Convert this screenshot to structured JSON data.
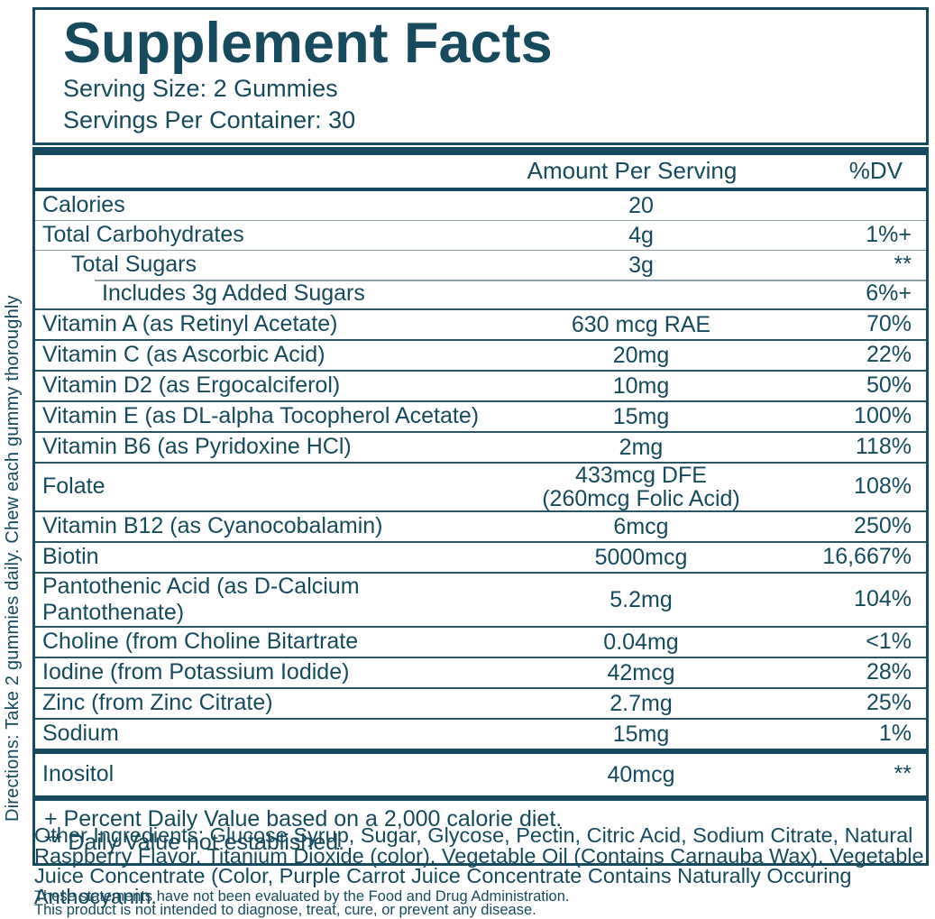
{
  "colors": {
    "accent_teal": "#174A5C",
    "light_line": "#93A2A9"
  },
  "directions": "Directions: Take 2 gummies daily. Chew each gummy thoroughly",
  "header": {
    "title": "Supplement Facts",
    "serving_size": "Serving Size: 2 Gummies",
    "servings_per_container": "Servings Per Container: 30"
  },
  "table": {
    "col_amount": "Amount Per Serving",
    "col_dv": "%DV",
    "rows": [
      {
        "name": "Calories",
        "amount": "20",
        "dv": "",
        "sep": "none",
        "indent": 0
      },
      {
        "name": "Total Carbohydrates",
        "amount": "4g",
        "dv": "1%+",
        "sep": "light",
        "indent": 0
      },
      {
        "name": "Total Sugars",
        "amount": "3g",
        "dv": "**",
        "sep": "light",
        "indent": 1
      },
      {
        "name": "Includes 3g Added Sugars",
        "amount": "",
        "dv": "6%+",
        "sep": "indent",
        "indent": 2
      },
      {
        "name": "Vitamin A (as Retinyl Acetate)",
        "amount": "630 mcg RAE",
        "dv": "70%",
        "sep": "dark",
        "indent": 0
      },
      {
        "name": "Vitamin C (as Ascorbic Acid)",
        "amount": "20mg",
        "dv": "22%",
        "sep": "dark",
        "indent": 0
      },
      {
        "name": "Vitamin D2 (as Ergocalciferol)",
        "amount": "10mg",
        "dv": "50%",
        "sep": "dark",
        "indent": 0
      },
      {
        "name": "Vitamin E (as DL-alpha Tocopherol Acetate)",
        "amount": "15mg",
        "dv": "100%",
        "sep": "dark",
        "indent": 0
      },
      {
        "name": "Vitamin B6 (as Pyridoxine HCl)",
        "amount": "2mg",
        "dv": "118%",
        "sep": "dark",
        "indent": 0
      },
      {
        "name": "Folate",
        "amount": "433mcg DFE",
        "amount2": "(260mcg Folic Acid)",
        "dv": "108%",
        "sep": "dark",
        "indent": 0
      },
      {
        "name": "Vitamin B12 (as Cyanocobalamin)",
        "amount": "6mcg",
        "dv": "250%",
        "sep": "dark",
        "indent": 0
      },
      {
        "name": "Biotin",
        "amount": "5000mcg",
        "dv": "16,667%",
        "sep": "dark",
        "indent": 0
      },
      {
        "name": "Pantothenic Acid (as D-Calcium Pantothenate)",
        "amount": "5.2mg",
        "dv": "104%",
        "sep": "dark",
        "indent": 0
      },
      {
        "name": "Choline (from Choline Bitartrate",
        "amount": "0.04mg",
        "dv": "<1%",
        "sep": "dark",
        "indent": 0
      },
      {
        "name": "Iodine (from Potassium Iodide)",
        "amount": "42mcg",
        "dv": "28%",
        "sep": "dark",
        "indent": 0
      },
      {
        "name": "Zinc (from Zinc Citrate)",
        "amount": "2.7mg",
        "dv": "25%",
        "sep": "dark",
        "indent": 0
      },
      {
        "name": "Sodium",
        "amount": "15mg",
        "dv": "1%",
        "sep": "dark",
        "indent": 0
      },
      {
        "name": "Inositol",
        "amount": "40mcg",
        "dv": "**",
        "sep": "thick",
        "indent": 0,
        "tall": true
      }
    ],
    "footnotes": [
      "+ Percent Daily Value based on a 2,000 calorie diet.",
      "** Daily Value not established."
    ]
  },
  "other_ingredients": "Other Ingredients: Glucose Syrup, Sugar, Glycose, Pectin, Citric Acid, Sodium Citrate, Natural Raspberry Flavor, Titanium Dioxide (color), Vegetable Oil (Contains Carnauba Wax), Vegetable Juice Concentrate (Color, Purple Carrot Juice Concentrate Contains Naturally Occuring Anthocyanin.",
  "disclaimers": [
    "These statements have not been evaluated by the Food and Drug Administration.",
    "This product is not intended to diagnose, treat, cure, or prevent any disease."
  ]
}
